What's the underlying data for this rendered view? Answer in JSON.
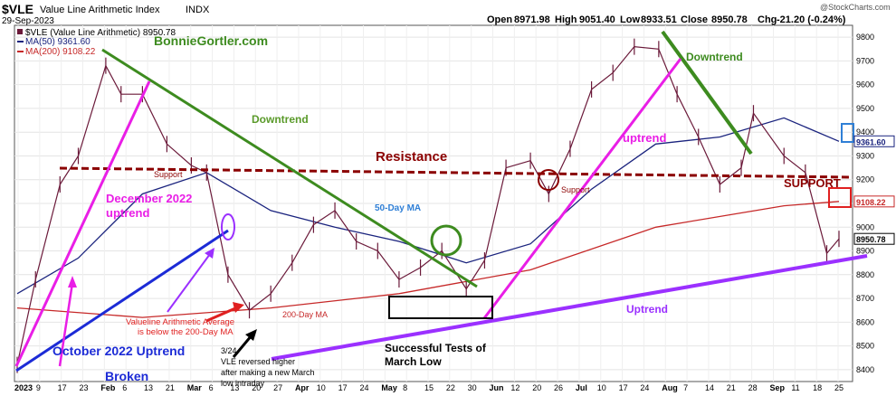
{
  "header": {
    "symbol": "$VLE",
    "name": "Value Line Arithmetic Index",
    "exchange": "INDX",
    "date": "29-Sep-2023",
    "brand": "@StockCharts.com",
    "open_label": "Open",
    "open": "8971.98",
    "high_label": "High",
    "high": "9051.40",
    "low_label": "Low",
    "low": "8933.51",
    "close_label": "Close",
    "close": "8950.78",
    "chg_label": "Chg",
    "chg": "-21.20 (-0.24%)"
  },
  "legend": {
    "main": "$VLE (Value Line Arithmetic) 8950.78",
    "ma50": "MA(50) 9361.60",
    "ma200": "MA(200) 9108.22"
  },
  "annotations": {
    "watermark": "BonnieGortler.com",
    "downtrend1": "Downtrend",
    "downtrend2": "Downtrend",
    "resistance": "Resistance",
    "support1": "Support",
    "support2": "Support",
    "support_caps": "SUPPORT",
    "dec_line1": "December 2022",
    "dec_line2": "uptrend",
    "ma50_label": "50-Day MA",
    "ma200_label": "200-Day MA",
    "uptrend_lower": "uptrend",
    "uptrend_big": "Uptrend",
    "oct_uptrend": "October 2022 Uptrend",
    "broken": "Broken",
    "vl_avg1": "Valueline Arithmetic Average",
    "vl_avg2": "is below the 200-Day MA",
    "note1": "3/24",
    "note2": "VLE reversed higher",
    "note3": "after making a new March",
    "note4": "low intraday",
    "tests1": "Successful Tests of",
    "tests2": "March Low"
  },
  "colors": {
    "price": "#6b1a3a",
    "ma50": "#1a237e",
    "ma200": "#c62828",
    "downtrend": "#3d8b1f",
    "magenta": "#e91ee6",
    "blue": "#1c2bd6",
    "purple": "#9b30ff",
    "resistance": "#8b0000",
    "box_red": "#e02020",
    "box_blue": "#2f7fd6"
  },
  "chart_data": {
    "type": "line",
    "ylim": [
      8350,
      9850
    ],
    "yticks": [
      8400,
      8500,
      8600,
      8700,
      8800,
      8900,
      9000,
      9100,
      9200,
      9300,
      9400,
      9500,
      9600,
      9700,
      9800
    ],
    "xticks": [
      "2023",
      "9",
      "17",
      "23",
      "Feb",
      "6",
      "13",
      "21",
      "Mar",
      "6",
      "13",
      "20",
      "27",
      "Apr",
      "10",
      "17",
      "24",
      "May",
      "8",
      "15",
      "22",
      "30",
      "Jun",
      "12",
      "20",
      "26",
      "Jul",
      "10",
      "17",
      "24",
      "Aug",
      "7",
      "14",
      "21",
      "28",
      "Sep",
      "11",
      "18",
      "25"
    ],
    "price_labels": [
      "9361.60",
      "9108.22",
      "8950.78"
    ],
    "series": [
      {
        "name": "$VLE (Value Line Arithmetic)",
        "x": [
          "2023-01-03",
          "2023-01-09",
          "2023-01-17",
          "2023-01-23",
          "2023-02-01",
          "2023-02-06",
          "2023-02-13",
          "2023-02-21",
          "2023-03-01",
          "2023-03-06",
          "2023-03-13",
          "2023-03-20",
          "2023-03-27",
          "2023-04-03",
          "2023-04-10",
          "2023-04-17",
          "2023-04-24",
          "2023-05-01",
          "2023-05-08",
          "2023-05-15",
          "2023-05-22",
          "2023-05-30",
          "2023-06-05",
          "2023-06-12",
          "2023-06-20",
          "2023-06-26",
          "2023-07-03",
          "2023-07-10",
          "2023-07-17",
          "2023-07-24",
          "2023-08-01",
          "2023-08-07",
          "2023-08-14",
          "2023-08-21",
          "2023-08-28",
          "2023-09-01",
          "2023-09-11",
          "2023-09-18",
          "2023-09-25",
          "2023-09-29"
        ],
        "values": [
          8420,
          8780,
          9180,
          9300,
          9680,
          9560,
          9560,
          9350,
          9260,
          9230,
          8800,
          8650,
          8720,
          8850,
          9010,
          9070,
          8940,
          8900,
          8780,
          8830,
          8900,
          8740,
          8860,
          9250,
          9280,
          9140,
          9330,
          9580,
          9650,
          9760,
          9750,
          9560,
          9380,
          9180,
          9250,
          9480,
          9300,
          9230,
          8890,
          8950.78
        ]
      },
      {
        "name": "MA(50)",
        "x": [
          "2023-01-03",
          "2023-01-23",
          "2023-02-13",
          "2023-03-06",
          "2023-03-27",
          "2023-04-17",
          "2023-05-08",
          "2023-05-30",
          "2023-06-20",
          "2023-07-10",
          "2023-07-31",
          "2023-08-21",
          "2023-09-11",
          "2023-09-29"
        ],
        "values": [
          8720,
          8870,
          9140,
          9230,
          9070,
          9000,
          8940,
          8850,
          8930,
          9160,
          9350,
          9380,
          9460,
          9361.6
        ]
      },
      {
        "name": "MA(200)",
        "x": [
          "2023-01-03",
          "2023-02-13",
          "2023-03-27",
          "2023-05-08",
          "2023-06-20",
          "2023-07-31",
          "2023-09-11",
          "2023-09-29"
        ],
        "values": [
          8660,
          8620,
          8660,
          8720,
          8820,
          9000,
          9090,
          9108.22
        ]
      }
    ]
  }
}
